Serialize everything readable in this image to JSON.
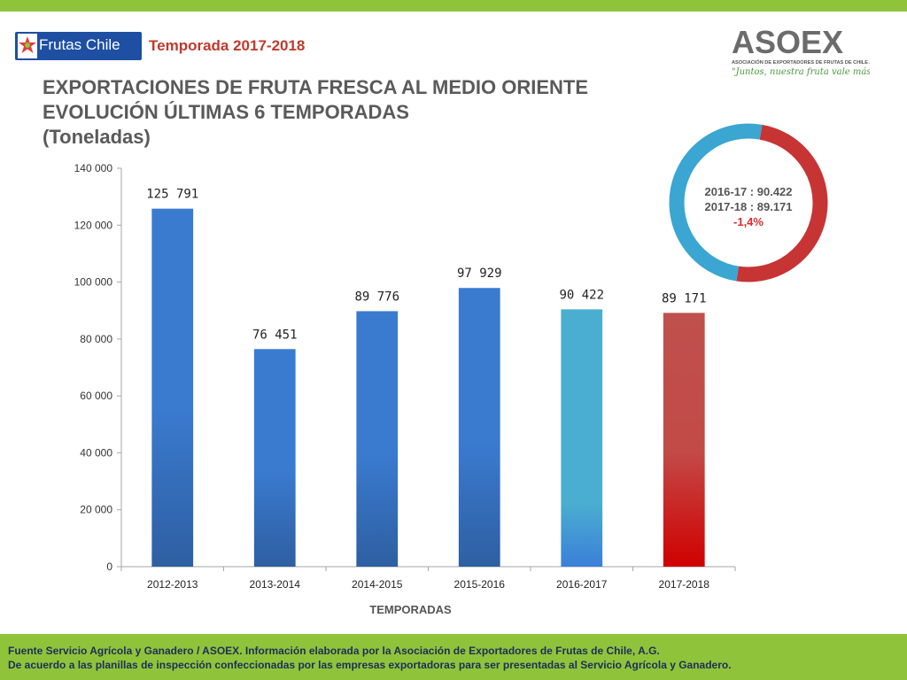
{
  "header": {
    "logo_text": "Frutas Chile",
    "season": "Temporada 2017-2018",
    "title_lines": [
      "EXPORTACIONES DE FRUTA FRESCA AL MEDIO ORIENTE",
      "EVOLUCIÓN ÚLTIMAS 6 TEMPORADAS",
      "(Toneladas)"
    ]
  },
  "asoex": {
    "name": "ASOEX",
    "subtitle": "ASOCIACIÓN DE EXPORTADORES DE FRUTAS DE CHILE A.G.",
    "slogan": "\"Juntos, nuestra fruta vale más\""
  },
  "donut": {
    "line1": "2016-17  : 90.422",
    "line2": "2017-18  : 89.171",
    "change": "-1,4%",
    "colors": {
      "blue": "#3aa6d1",
      "red": "#c73434"
    }
  },
  "chart_data": {
    "type": "bar",
    "categories": [
      "2012-2013",
      "2013-2014",
      "2014-2015",
      "2015-2016",
      "2016-2017",
      "2017-2018"
    ],
    "values": [
      125791,
      76451,
      89776,
      97929,
      90422,
      89171
    ],
    "value_labels": [
      "125 791",
      "76 451",
      "89 776",
      "97 929",
      "90 422",
      "89 171"
    ],
    "yticks": [
      "0",
      "20 000",
      "40 000",
      "60 000",
      "80 000",
      "100 000",
      "120 000",
      "140 000"
    ],
    "ylim": [
      0,
      140000
    ],
    "xlabel": "TEMPORADAS",
    "ylabel": "",
    "grid": false,
    "colors": [
      "#3a7bd0",
      "#3a7bd0",
      "#3a7bd0",
      "#3a7bd0",
      "#4aaed0",
      "#c0504d"
    ]
  },
  "footer": {
    "line1": "Fuente Servicio Agrícola y Ganadero / ASOEX. Información elaborada por la Asociación de Exportadores de  Frutas de Chile, A.G.",
    "line2": "De acuerdo a las planillas de inspección confeccionadas por las empresas exportadoras  para ser presentadas al Servicio Agrícola y Ganadero."
  }
}
